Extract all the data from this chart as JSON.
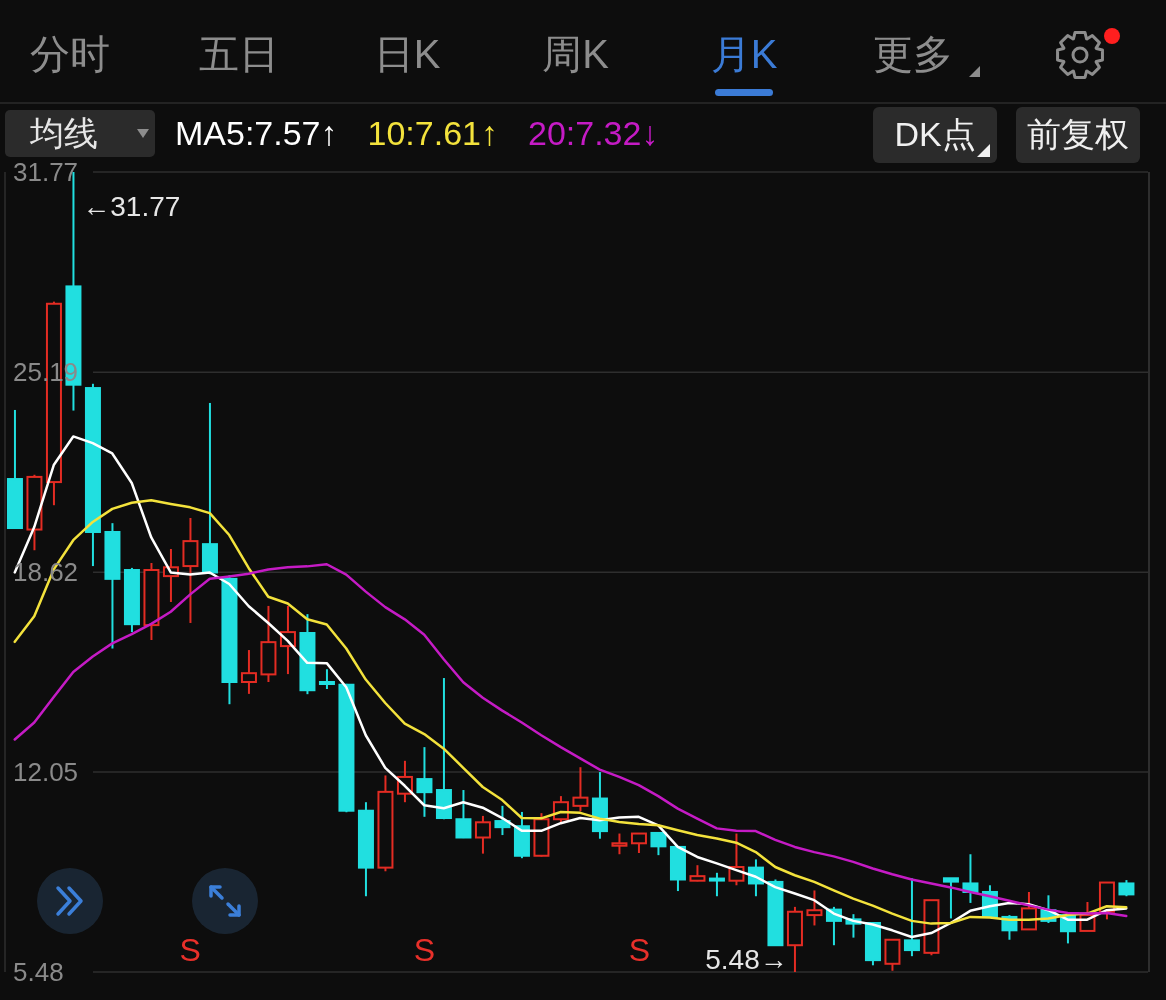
{
  "chart_data": [
    {
      "type": "other",
      "annotations": [
        "分时",
        "五日",
        "日K",
        "周K",
        "月K",
        "更多",
        "DK点",
        "前复权"
      ]
    },
    {
      "type": "candlestick",
      "legend_title": "均线",
      "legend": "top left",
      "grid": "y",
      "tick_labels": "y",
      "categories": [
        null,
        null,
        null,
        null,
        null,
        null,
        null,
        null,
        null,
        null,
        null,
        null,
        null,
        null,
        null,
        null,
        null,
        null,
        null,
        null,
        null,
        null,
        null,
        null,
        null,
        null,
        null,
        null,
        null,
        null,
        null,
        null,
        null,
        null,
        null,
        null,
        null,
        null,
        null,
        null,
        null,
        null,
        null,
        null,
        null,
        null,
        null,
        null,
        null,
        null,
        null,
        null,
        null,
        null,
        null,
        null,
        null,
        null
      ],
      "ohlc": [
        [
          21.68,
          23.95,
          20.07,
          20.07
        ],
        [
          20.02,
          21.82,
          19.34,
          21.75
        ],
        [
          21.58,
          27.51,
          20.82,
          27.44
        ],
        [
          28.01,
          31.77,
          23.93,
          24.78
        ],
        [
          24.67,
          24.81,
          18.82,
          19.94
        ],
        [
          19.94,
          20.23,
          16.11,
          18.4
        ],
        [
          18.69,
          18.76,
          16.65,
          16.91
        ],
        [
          16.88,
          18.92,
          16.39,
          18.69
        ],
        [
          18.49,
          19.38,
          17.64,
          18.78
        ],
        [
          18.82,
          20.4,
          16.95,
          19.64
        ],
        [
          19.54,
          24.18,
          18.55,
          18.61
        ],
        [
          18.4,
          18.52,
          14.28,
          15.01
        ],
        [
          15.01,
          16.06,
          14.62,
          15.3
        ],
        [
          15.26,
          17.51,
          15.01,
          16.32
        ],
        [
          16.19,
          17.51,
          15.27,
          16.65
        ],
        [
          16.62,
          17.24,
          14.61,
          14.74
        ],
        [
          15.01,
          15.43,
          14.78,
          14.98
        ],
        [
          14.92,
          14.95,
          10.73,
          10.78
        ],
        [
          10.78,
          11.06,
          7.97,
          8.91
        ],
        [
          8.91,
          11.94,
          8.79,
          11.4
        ],
        [
          11.34,
          12.42,
          11.06,
          11.89
        ],
        [
          11.82,
          12.87,
          10.58,
          11.39
        ],
        [
          11.46,
          15.14,
          10.5,
          10.54
        ],
        [
          10.5,
          11.46,
          9.88,
          9.9
        ],
        [
          9.9,
          10.61,
          9.37,
          10.4
        ],
        [
          10.44,
          10.94,
          9.98,
          10.24
        ],
        [
          10.27,
          10.74,
          9.22,
          9.3
        ],
        [
          9.3,
          10.7,
          9.27,
          10.5
        ],
        [
          10.5,
          11.26,
          10.4,
          11.06
        ],
        [
          10.94,
          12.21,
          10.76,
          11.21
        ],
        [
          11.18,
          12.05,
          9.86,
          10.11
        ],
        [
          9.63,
          10.03,
          9.35,
          9.71
        ],
        [
          9.71,
          10.03,
          9.39,
          10.03
        ],
        [
          10.05,
          10.08,
          9.32,
          9.61
        ],
        [
          9.59,
          9.59,
          8.14,
          8.52
        ],
        [
          8.48,
          8.99,
          8.46,
          8.63
        ],
        [
          8.55,
          8.74,
          7.97,
          8.5
        ],
        [
          8.48,
          10.03,
          8.33,
          8.93
        ],
        [
          8.91,
          9.18,
          7.97,
          8.39
        ],
        [
          8.44,
          8.52,
          6.36,
          6.36
        ],
        [
          6.36,
          7.62,
          5.48,
          7.46
        ],
        [
          7.35,
          8.16,
          7.01,
          7.51
        ],
        [
          7.53,
          7.62,
          6.36,
          7.16
        ],
        [
          7.21,
          7.38,
          6.61,
          7.07
        ],
        [
          7.09,
          7.12,
          5.7,
          5.87
        ],
        [
          5.75,
          6.54,
          5.52,
          6.54
        ],
        [
          6.52,
          8.56,
          6.0,
          6.2
        ],
        [
          6.11,
          7.84,
          6.03,
          7.84
        ],
        [
          8.56,
          8.56,
          7.24,
          8.45
        ],
        [
          8.39,
          9.35,
          7.75,
          8.11
        ],
        [
          8.11,
          8.33,
          7.29,
          7.29
        ],
        [
          7.29,
          7.35,
          6.54,
          6.85
        ],
        [
          6.88,
          8.11,
          6.88,
          7.57
        ],
        [
          7.51,
          8.0,
          7.09,
          7.16
        ],
        [
          7.35,
          7.38,
          6.42,
          6.82
        ],
        [
          6.83,
          7.78,
          6.83,
          7.35
        ],
        [
          7.46,
          8.42,
          7.21,
          8.42
        ],
        [
          8.39,
          8.5,
          7.97,
          8.03
        ]
      ],
      "colors": [
        "#21dfe0",
        "#e32c23",
        "#e32c23",
        "#21dfe0",
        "#21dfe0",
        "#21dfe0",
        "#21dfe0",
        "#e32c23",
        "#e32c23",
        "#e32c23",
        "#21dfe0",
        "#21dfe0",
        "#e32c23",
        "#e32c23",
        "#e32c23",
        "#21dfe0",
        "#21dfe0",
        "#21dfe0",
        "#21dfe0",
        "#e32c23",
        "#e32c23",
        "#21dfe0",
        "#21dfe0",
        "#21dfe0",
        "#e32c23",
        "#21dfe0",
        "#21dfe0",
        "#e32c23",
        "#e32c23",
        "#e32c23",
        "#21dfe0",
        "#e32c23",
        "#e32c23",
        "#21dfe0",
        "#21dfe0",
        "#e32c23",
        "#21dfe0",
        "#e32c23",
        "#21dfe0",
        "#21dfe0",
        "#e32c23",
        "#e32c23",
        "#21dfe0",
        "#21dfe0",
        "#21dfe0",
        "#e32c23",
        "#21dfe0",
        "#e32c23",
        "#21dfe0",
        "#21dfe0",
        "#21dfe0",
        "#21dfe0",
        "#e32c23",
        "#21dfe0",
        "#21dfe0",
        "#e32c23",
        "#e32c23",
        "#21dfe0"
      ],
      "series": [
        {
          "name": "MA5:7.57↑",
          "type": "line",
          "color": "#ffffff",
          "values": [
            18.61,
            20.1,
            22.14,
            23.08,
            22.86,
            22.52,
            21.55,
            19.76,
            18.61,
            18.54,
            18.61,
            18.23,
            17.5,
            16.95,
            16.36,
            15.64,
            15.63,
            14.84,
            13.26,
            12.19,
            11.6,
            10.96,
            10.86,
            11.06,
            10.88,
            10.54,
            10.12,
            10.12,
            10.37,
            10.54,
            10.47,
            10.56,
            10.58,
            10.3,
            9.59,
            9.26,
            9.05,
            8.83,
            8.61,
            8.27,
            8.06,
            7.84,
            7.4,
            7.16,
            7.04,
            6.85,
            6.63,
            6.76,
            7.09,
            7.49,
            7.64,
            7.75,
            7.71,
            7.51,
            7.2,
            7.2,
            7.51,
            7.57
          ]
        },
        {
          "name": "10:7.61↑",
          "type": "line",
          "color": "#f3e23c",
          "values": [
            16.33,
            17.17,
            18.71,
            19.67,
            20.27,
            20.7,
            20.9,
            20.98,
            20.86,
            20.75,
            20.56,
            19.84,
            18.75,
            17.81,
            17.59,
            17.07,
            16.9,
            16.11,
            15.09,
            14.32,
            13.64,
            13.3,
            12.82,
            12.19,
            11.56,
            11.13,
            10.54,
            10.53,
            10.74,
            10.71,
            10.52,
            10.41,
            10.34,
            10.3,
            10.14,
            9.98,
            9.87,
            9.73,
            9.42,
            8.93,
            8.66,
            8.44,
            8.16,
            7.89,
            7.66,
            7.4,
            7.16,
            7.07,
            7.09,
            7.29,
            7.27,
            7.2,
            7.2,
            7.24,
            7.35,
            7.4,
            7.64,
            7.61
          ]
        },
        {
          "name": "20:7.32↓",
          "type": "line",
          "color": "#c51bc5",
          "values": [
            13.12,
            13.68,
            14.52,
            15.34,
            15.85,
            16.28,
            16.58,
            16.92,
            17.32,
            17.89,
            18.4,
            18.48,
            18.57,
            18.71,
            18.78,
            18.81,
            18.88,
            18.54,
            17.98,
            17.47,
            17.07,
            16.56,
            15.76,
            15.0,
            14.49,
            14.07,
            13.68,
            13.26,
            12.87,
            12.5,
            12.13,
            11.89,
            11.62,
            11.26,
            10.85,
            10.52,
            10.2,
            10.12,
            10.11,
            9.82,
            9.59,
            9.42,
            9.28,
            9.1,
            8.88,
            8.69,
            8.52,
            8.39,
            8.26,
            8.11,
            7.97,
            7.82,
            7.67,
            7.53,
            7.42,
            7.4,
            7.42,
            7.32
          ]
        }
      ],
      "ylim": [
        5.48,
        31.77
      ],
      "yticks": [
        5.48,
        12.05,
        18.62,
        25.19,
        31.77
      ],
      "annotations": [
        "←31.77",
        "5.48→",
        "S",
        "S",
        "S"
      ]
    }
  ]
}
